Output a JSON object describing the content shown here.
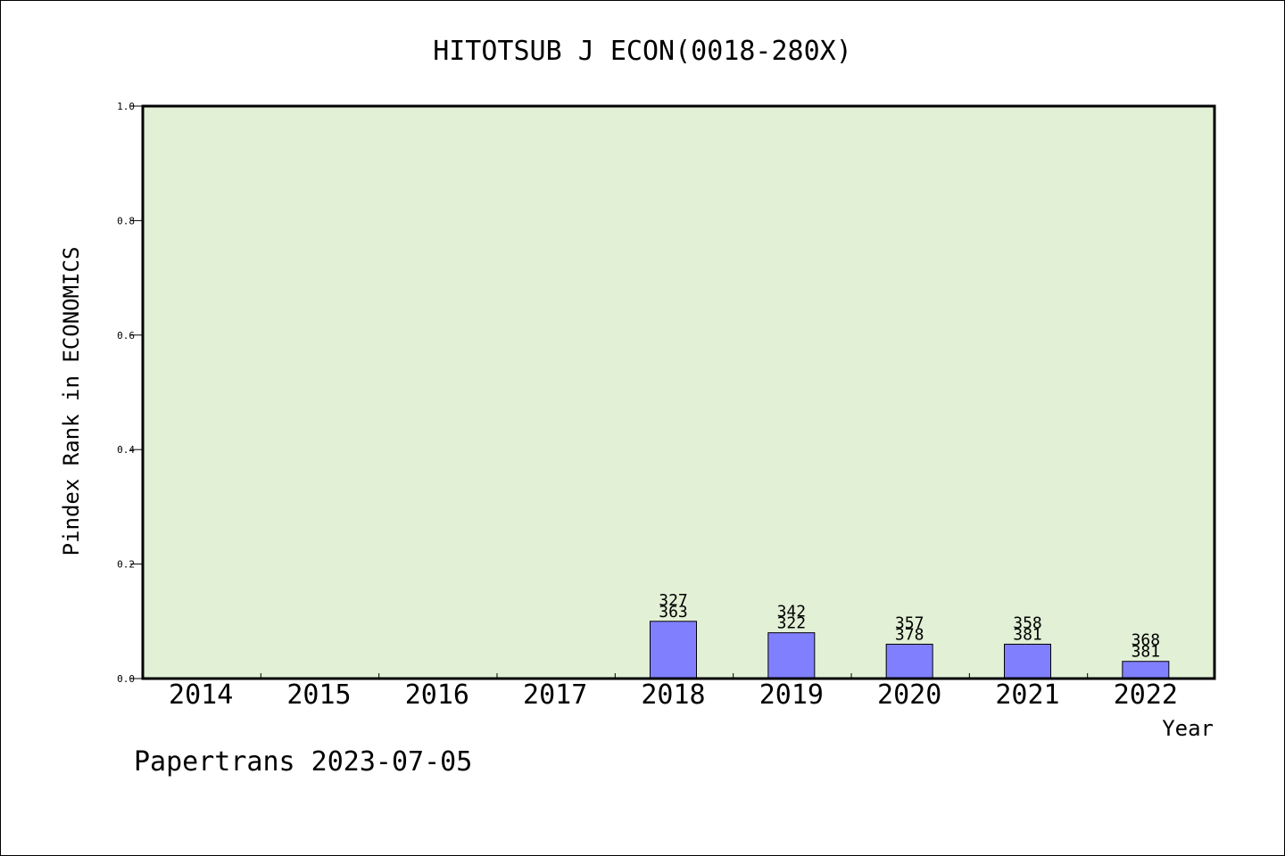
{
  "chart_data": {
    "type": "bar",
    "title": "HITOTSUB J ECON(0018-280X)",
    "xlabel": "Year",
    "ylabel": "Pindex Rank in ECONOMICS",
    "ylim": [
      0,
      1.0
    ],
    "yticks": [
      "0.0",
      "0.2",
      "0.4",
      "0.6",
      "0.8",
      "1.0"
    ],
    "grid": false,
    "plot_background": "#e2f0d6",
    "bar_color": "#8080ff",
    "categories": [
      "2014",
      "2015",
      "2016",
      "2017",
      "2018",
      "2019",
      "2020",
      "2021",
      "2022"
    ],
    "values": [
      null,
      null,
      null,
      null,
      0.1,
      0.08,
      0.06,
      0.06,
      0.03
    ],
    "labels_top": [
      "",
      "",
      "",
      "",
      "327",
      "342",
      "357",
      "358",
      "368"
    ],
    "labels_bottom": [
      "",
      "",
      "",
      "",
      "363",
      "322",
      "378",
      "381",
      "381"
    ],
    "footer": "Papertrans 2023-07-05"
  }
}
